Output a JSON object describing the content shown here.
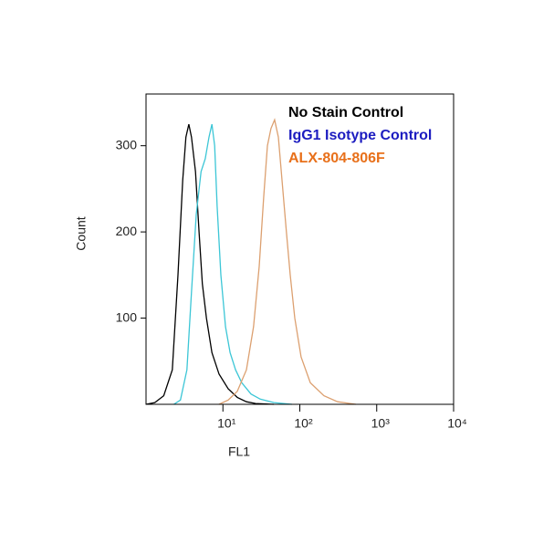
{
  "chart_data": {
    "type": "histogram-overlay",
    "x_label": "FL1",
    "y_label": "Count",
    "xscale": "log",
    "xlim": [
      1,
      10000
    ],
    "ylim": [
      0,
      360
    ],
    "xticks": [
      {
        "value": 10,
        "label": "10¹"
      },
      {
        "value": 100,
        "label": "10²"
      },
      {
        "value": 1000,
        "label": "10³"
      },
      {
        "value": 10000,
        "label": "10⁴"
      }
    ],
    "yticks": [
      100,
      200,
      300
    ],
    "series": [
      {
        "name": "No Stain Control",
        "color": "#000000",
        "legend_color": "#000000",
        "x": [
          1,
          1.3,
          1.7,
          2.2,
          2.6,
          3,
          3.3,
          3.6,
          3.9,
          4.4,
          4.9,
          5.4,
          6.1,
          7.2,
          8.9,
          11.7,
          15.4,
          20.2,
          26.6,
          46
        ],
        "values": [
          0,
          2,
          10,
          40,
          150,
          260,
          310,
          325,
          310,
          270,
          200,
          140,
          100,
          60,
          35,
          18,
          8,
          3,
          1,
          0
        ]
      },
      {
        "name": "IgG1 Isotype Control",
        "color": "#3cc6d6",
        "legend_color": "#1c1cc0",
        "x": [
          2.3,
          2.8,
          3.4,
          3.9,
          4.5,
          5.2,
          5.9,
          6.6,
          7.2,
          7.8,
          8.4,
          9.4,
          10.8,
          12.4,
          14.6,
          17.6,
          23.2,
          30.5,
          46,
          79
        ],
        "values": [
          0,
          5,
          40,
          130,
          220,
          270,
          285,
          310,
          325,
          300,
          230,
          150,
          90,
          60,
          40,
          25,
          12,
          6,
          2,
          0
        ]
      },
      {
        "name": "ALX-804-806F",
        "color": "#dca070",
        "legend_color": "#e8701a",
        "x": [
          8.9,
          11.7,
          15.4,
          20.2,
          25,
          29.6,
          33.9,
          37.9,
          42.2,
          47,
          52.6,
          58.7,
          67,
          75,
          86,
          104,
          137,
          206,
          310,
          536
        ],
        "values": [
          0,
          5,
          15,
          40,
          90,
          160,
          240,
          300,
          320,
          330,
          310,
          260,
          200,
          150,
          100,
          55,
          25,
          10,
          3,
          0
        ]
      }
    ]
  }
}
